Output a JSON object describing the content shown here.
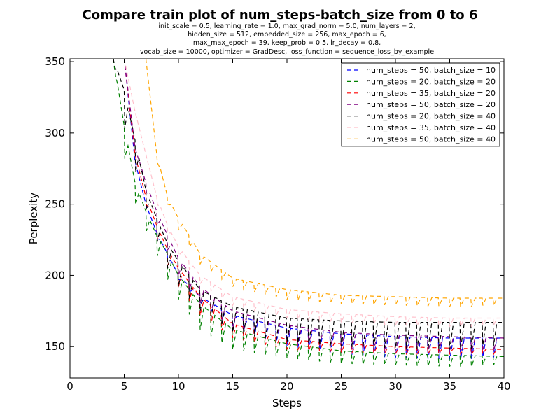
{
  "chart_data": {
    "type": "line",
    "title": "Compare train plot of num_steps-batch_size from 0 to 6",
    "subtitle_lines": [
      "init_scale = 0.5, learning_rate = 1.0, max_grad_norm = 5.0, num_layers = 2,",
      "hidden_size = 512, embedded_size = 256, max_epoch = 6,",
      "max_max_epoch = 39, keep_prob = 0.5, lr_decay = 0.8,",
      "vocab_size = 10000, optimizer = GradDesc, loss_function = sequence_loss_by_example"
    ],
    "xlabel": "Steps",
    "ylabel": "Perplexity",
    "xlim": [
      0,
      40
    ],
    "ylim": [
      128,
      352
    ],
    "x_ticks": [
      0,
      5,
      10,
      15,
      20,
      25,
      30,
      35,
      40
    ],
    "y_ticks": [
      150,
      200,
      250,
      300,
      350
    ],
    "line_style": "dashed",
    "legend_position": "top-right",
    "series": [
      {
        "name": "num_steps = 50, batch_size = 10",
        "color": "#0000ff",
        "points": [
          [
            5,
            352
          ],
          [
            6,
            280
          ],
          [
            7,
            250
          ],
          [
            8,
            230
          ],
          [
            9,
            215
          ],
          [
            10,
            200
          ],
          [
            12,
            185
          ],
          [
            15,
            172
          ],
          [
            20,
            163
          ],
          [
            25,
            159
          ],
          [
            30,
            157
          ],
          [
            35,
            156
          ],
          [
            40,
            156
          ]
        ],
        "low_points": [
          [
            5,
            352
          ],
          [
            6,
            280
          ],
          [
            7,
            250
          ],
          [
            8,
            226
          ],
          [
            9,
            212
          ],
          [
            10,
            197
          ],
          [
            12,
            180
          ],
          [
            15,
            164
          ],
          [
            20,
            150
          ],
          [
            25,
            145
          ],
          [
            30,
            142
          ],
          [
            35,
            141
          ],
          [
            40,
            140
          ]
        ]
      },
      {
        "name": "num_steps = 20, batch_size = 20",
        "color": "#008000",
        "points": [
          [
            4,
            352
          ],
          [
            5,
            305
          ],
          [
            6,
            265
          ],
          [
            7,
            245
          ],
          [
            8,
            228
          ],
          [
            9,
            215
          ],
          [
            10,
            200
          ],
          [
            12,
            180
          ],
          [
            15,
            162
          ],
          [
            20,
            152
          ],
          [
            25,
            147
          ],
          [
            30,
            145
          ],
          [
            35,
            144
          ],
          [
            40,
            143
          ]
        ],
        "low_points": [
          [
            4,
            352
          ],
          [
            5,
            280
          ],
          [
            6,
            248
          ],
          [
            7,
            230
          ],
          [
            8,
            212
          ],
          [
            9,
            197
          ],
          [
            10,
            183
          ],
          [
            12,
            162
          ],
          [
            15,
            148
          ],
          [
            20,
            142
          ],
          [
            25,
            138
          ],
          [
            30,
            137
          ],
          [
            35,
            136
          ],
          [
            40,
            136
          ]
        ]
      },
      {
        "name": "num_steps = 35, batch_size = 20",
        "color": "#ff0000",
        "points": [
          [
            5,
            352
          ],
          [
            6,
            285
          ],
          [
            7,
            255
          ],
          [
            8,
            235
          ],
          [
            9,
            218
          ],
          [
            10,
            205
          ],
          [
            12,
            185
          ],
          [
            15,
            166
          ],
          [
            20,
            155
          ],
          [
            25,
            152
          ],
          [
            30,
            150
          ],
          [
            35,
            149
          ],
          [
            40,
            148
          ]
        ],
        "low_points": [
          [
            5,
            352
          ],
          [
            6,
            285
          ],
          [
            7,
            250
          ],
          [
            8,
            225
          ],
          [
            9,
            207
          ],
          [
            10,
            192
          ],
          [
            12,
            172
          ],
          [
            15,
            156
          ],
          [
            20,
            148
          ],
          [
            25,
            146
          ],
          [
            30,
            145
          ],
          [
            35,
            145
          ],
          [
            40,
            144
          ]
        ]
      },
      {
        "name": "num_steps = 50, batch_size = 20",
        "color": "#800080",
        "points": [
          [
            5,
            352
          ],
          [
            6,
            290
          ],
          [
            7,
            265
          ],
          [
            8,
            245
          ],
          [
            9,
            228
          ],
          [
            10,
            212
          ],
          [
            12,
            192
          ],
          [
            15,
            175
          ],
          [
            20,
            165
          ],
          [
            25,
            160
          ],
          [
            30,
            158
          ],
          [
            35,
            157
          ],
          [
            40,
            156
          ]
        ],
        "low_points": [
          [
            5,
            352
          ],
          [
            6,
            290
          ],
          [
            7,
            258
          ],
          [
            8,
            235
          ],
          [
            9,
            218
          ],
          [
            10,
            200
          ],
          [
            12,
            180
          ],
          [
            15,
            163
          ],
          [
            20,
            153
          ],
          [
            25,
            149
          ],
          [
            30,
            147
          ],
          [
            35,
            146
          ],
          [
            40,
            145
          ]
        ]
      },
      {
        "name": "num_steps = 20, batch_size = 40",
        "color": "#000000",
        "points": [
          [
            4,
            352
          ],
          [
            5,
            330
          ],
          [
            6,
            295
          ],
          [
            7,
            260
          ],
          [
            8,
            240
          ],
          [
            9,
            222
          ],
          [
            10,
            210
          ],
          [
            12,
            190
          ],
          [
            15,
            178
          ],
          [
            20,
            170
          ],
          [
            25,
            168
          ],
          [
            30,
            167
          ],
          [
            35,
            167
          ],
          [
            40,
            167
          ]
        ],
        "low_points": [
          [
            4,
            352
          ],
          [
            5,
            300
          ],
          [
            6,
            270
          ],
          [
            7,
            245
          ],
          [
            8,
            222
          ],
          [
            9,
            205
          ],
          [
            10,
            192
          ],
          [
            12,
            175
          ],
          [
            15,
            160
          ],
          [
            20,
            153
          ],
          [
            25,
            150
          ],
          [
            30,
            149
          ],
          [
            35,
            148
          ],
          [
            40,
            148
          ]
        ]
      },
      {
        "name": "num_steps = 35, batch_size = 40",
        "color": "#ffc0cb",
        "points": [
          [
            5,
            352
          ],
          [
            6,
            315
          ],
          [
            7,
            285
          ],
          [
            8,
            255
          ],
          [
            9,
            235
          ],
          [
            10,
            220
          ],
          [
            12,
            200
          ],
          [
            15,
            185
          ],
          [
            20,
            176
          ],
          [
            25,
            173
          ],
          [
            30,
            171
          ],
          [
            35,
            170
          ],
          [
            40,
            170
          ]
        ],
        "low_points": [
          [
            5,
            352
          ],
          [
            6,
            315
          ],
          [
            7,
            285
          ],
          [
            8,
            250
          ],
          [
            9,
            230
          ],
          [
            10,
            214
          ],
          [
            12,
            194
          ],
          [
            15,
            179
          ],
          [
            20,
            170
          ],
          [
            25,
            167
          ],
          [
            30,
            165
          ],
          [
            35,
            164
          ],
          [
            40,
            164
          ]
        ]
      },
      {
        "name": "num_steps = 50, batch_size = 40",
        "color": "#ffa500",
        "points": [
          [
            7,
            352
          ],
          [
            8,
            285
          ],
          [
            9,
            255
          ],
          [
            10,
            240
          ],
          [
            11,
            228
          ],
          [
            12,
            215
          ],
          [
            15,
            198
          ],
          [
            20,
            190
          ],
          [
            25,
            186
          ],
          [
            30,
            185
          ],
          [
            35,
            184
          ],
          [
            40,
            184
          ]
        ],
        "low_points": [
          [
            7,
            352
          ],
          [
            8,
            280
          ],
          [
            9,
            250
          ],
          [
            10,
            232
          ],
          [
            11,
            220
          ],
          [
            12,
            208
          ],
          [
            15,
            192
          ],
          [
            20,
            183
          ],
          [
            25,
            180
          ],
          [
            30,
            179
          ],
          [
            35,
            178
          ],
          [
            40,
            178
          ]
        ]
      }
    ]
  }
}
